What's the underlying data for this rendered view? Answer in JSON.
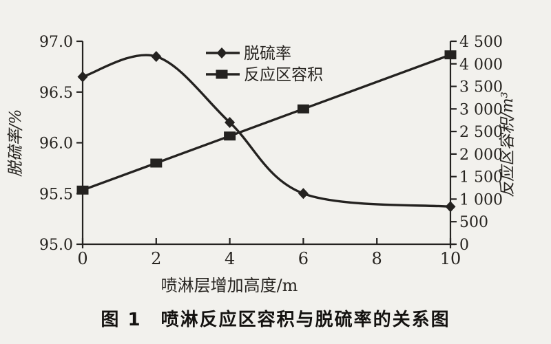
{
  "colors": {
    "background": "#f2f1ed",
    "ink": "#242220",
    "caption_color": "#141210"
  },
  "chart_data": {
    "type": "line",
    "caption": "图 1　喷淋反应区容积与脱硫率的关系图",
    "xlabel": "喷淋层增加高度/m",
    "ylabel_left": "脱硫率/%",
    "ylabel_right": "反应区容积/m³",
    "xlim": [
      0,
      10
    ],
    "x_ticks": [
      "0",
      "2",
      "4",
      "6",
      "8",
      "10"
    ],
    "ylim_left": [
      95.0,
      97.0
    ],
    "yticks_left": [
      "97.0",
      "96.5",
      "96.0",
      "95.5",
      "95.0"
    ],
    "ylim_right": [
      0,
      4500
    ],
    "yticks_right": [
      "4 500",
      "4 000",
      "3 500",
      "3 000",
      "2 500",
      "2 000",
      "1 500",
      "1 000",
      "500",
      "0"
    ],
    "grid": false,
    "legend": {
      "position": "upper-center",
      "items": [
        "脱硫率",
        "反应区容积"
      ]
    },
    "series": [
      {
        "name": "脱硫率",
        "axis": "left",
        "marker": "diamond",
        "style": "smooth",
        "x": [
          0,
          2,
          4,
          6,
          10
        ],
        "values": [
          96.65,
          96.85,
          96.2,
          95.5,
          95.37
        ]
      },
      {
        "name": "反应区容积",
        "axis": "right",
        "marker": "square",
        "style": "straight",
        "x": [
          0,
          2,
          4,
          6,
          10
        ],
        "values": [
          1200,
          1800,
          2400,
          3000,
          4200
        ]
      }
    ]
  }
}
